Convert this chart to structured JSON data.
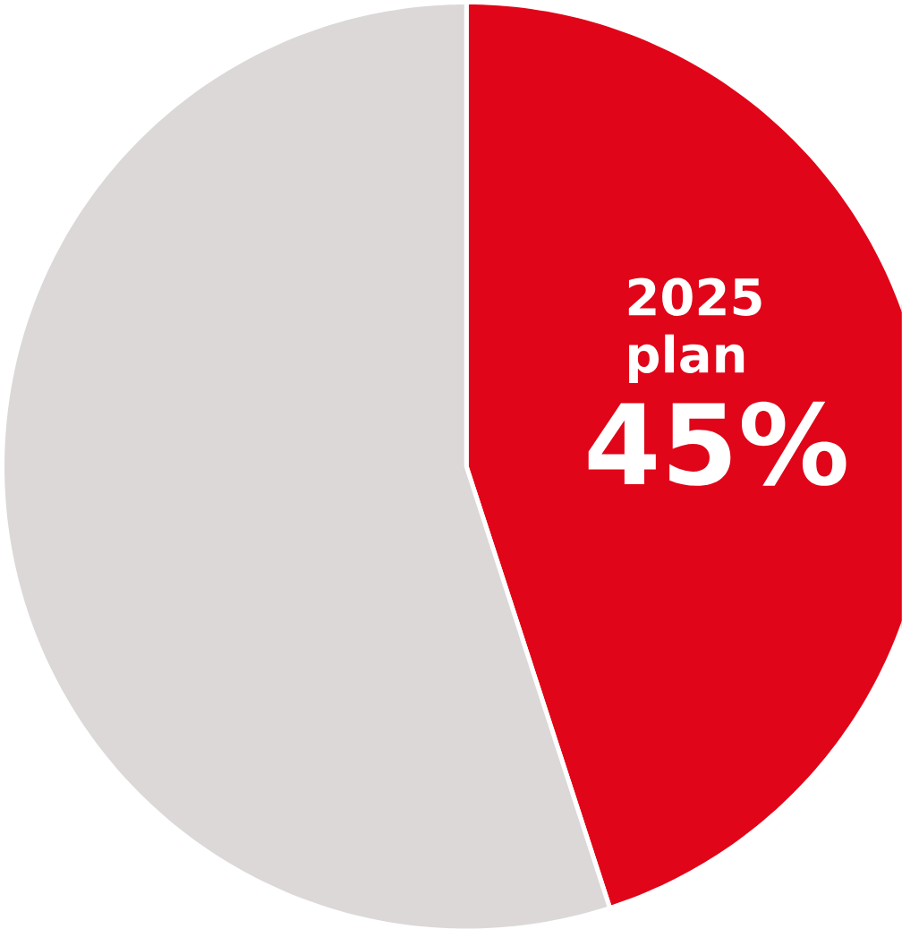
{
  "chart_data": {
    "type": "pie",
    "categories": [
      "2025 plan",
      null
    ],
    "values": [
      45,
      55
    ],
    "colors": [
      "#e00518",
      "#dcd8d8"
    ],
    "value_labels": [
      "45%",
      null
    ]
  }
}
